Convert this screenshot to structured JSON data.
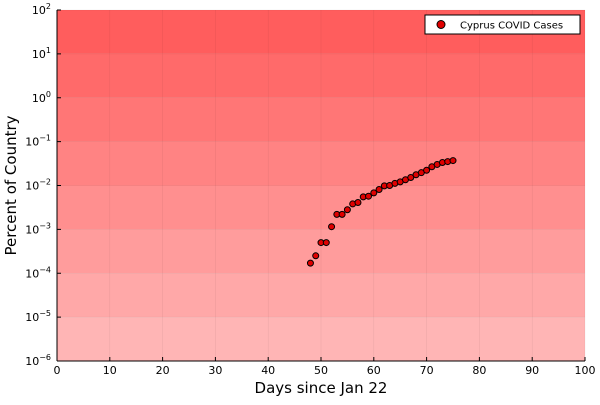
{
  "chart_data": {
    "type": "scatter",
    "title": "",
    "xlabel": "Days since Jan 22",
    "ylabel": "Percent of Country",
    "xlim": [
      0,
      100
    ],
    "ylim_log10": [
      -6,
      2
    ],
    "y_scale": "log10",
    "grid": true,
    "legend_position": "top-right",
    "x_ticks": [
      0,
      10,
      20,
      30,
      40,
      50,
      60,
      70,
      80,
      90,
      100
    ],
    "y_tick_exponents": [
      -6,
      -5,
      -4,
      -3,
      -2,
      -1,
      0,
      1,
      2
    ],
    "background_bands": {
      "top_color": "#ff5d5d",
      "bottom_color": "#ffb5b5"
    },
    "series": [
      {
        "name": "Cyprus COVID Cases",
        "color": "#e00000",
        "x": [
          48,
          49,
          50,
          51,
          52,
          53,
          54,
          55,
          56,
          57,
          58,
          59,
          60,
          61,
          62,
          63,
          64,
          65,
          66,
          67,
          68,
          69,
          70,
          71,
          72,
          73,
          74,
          75
        ],
        "y": [
          0.00017,
          0.00025,
          0.0005,
          0.0005,
          0.00115,
          0.0022,
          0.0022,
          0.0028,
          0.0038,
          0.0041,
          0.0055,
          0.0057,
          0.0068,
          0.0081,
          0.0098,
          0.01,
          0.0112,
          0.0121,
          0.0135,
          0.0152,
          0.0176,
          0.0196,
          0.0223,
          0.0268,
          0.0302,
          0.0335,
          0.0351,
          0.037
        ]
      }
    ]
  }
}
